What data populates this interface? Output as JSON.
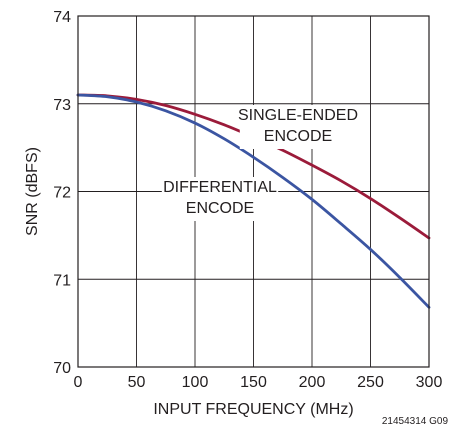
{
  "chart_data": {
    "type": "line",
    "xlabel": "INPUT FREQUENCY (MHz)",
    "ylabel": "SNR (dBFS)",
    "xlim": [
      0,
      300
    ],
    "ylim": [
      70,
      74
    ],
    "x_ticks": [
      0,
      50,
      100,
      150,
      200,
      250,
      300
    ],
    "y_ticks": [
      70,
      71,
      72,
      73,
      74
    ],
    "grid": true,
    "figure_id": "21454314 G09",
    "series": [
      {
        "name": "SINGLE-ENDED ENCODE",
        "label_lines": [
          "SINGLE-ENDED",
          "ENCODE"
        ],
        "color": "#9b1b3a",
        "x": [
          0,
          25,
          50,
          75,
          100,
          125,
          150,
          175,
          200,
          225,
          250,
          275,
          300
        ],
        "y": [
          73.1,
          73.09,
          73.05,
          72.98,
          72.88,
          72.76,
          72.62,
          72.47,
          72.3,
          72.12,
          71.92,
          71.7,
          71.47
        ]
      },
      {
        "name": "DIFFERENTIAL ENCODE",
        "label_lines": [
          "DIFFERENTIAL",
          "ENCODE"
        ],
        "color": "#3b55a2",
        "x": [
          0,
          25,
          50,
          75,
          100,
          125,
          150,
          175,
          200,
          225,
          250,
          275,
          300
        ],
        "y": [
          73.1,
          73.08,
          73.02,
          72.92,
          72.78,
          72.6,
          72.39,
          72.16,
          71.91,
          71.63,
          71.34,
          71.02,
          70.68
        ]
      }
    ]
  }
}
